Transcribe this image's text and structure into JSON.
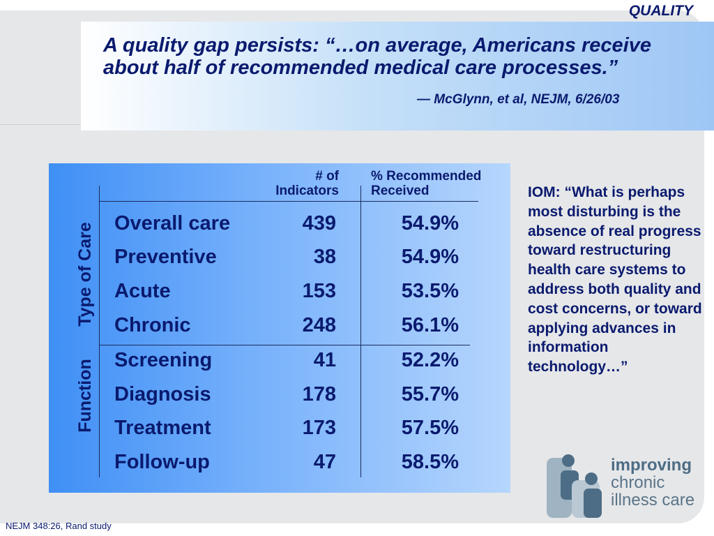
{
  "header": {
    "section_tag": "QUALITY"
  },
  "quote": {
    "text": "A quality gap persists:  “…on average, Americans receive about half of recommended medical care processes.”",
    "citation": "— McGlynn, et al, NEJM, 6/26/03"
  },
  "table": {
    "col_indicators": "# of Indicators",
    "col_indicators_l1": "# of",
    "col_indicators_l2": "Indicators",
    "col_pct_l1": "% Recommended",
    "col_pct_l2": "Received",
    "group_type": "Type of Care",
    "group_function": "Function",
    "rows": [
      {
        "name": "Overall care",
        "count": "439",
        "pct": "54.9%"
      },
      {
        "name": "Preventive",
        "count": "38",
        "pct": "54.9%"
      },
      {
        "name": "Acute",
        "count": "153",
        "pct": "53.5%"
      },
      {
        "name": "Chronic",
        "count": "248",
        "pct": "56.1%"
      },
      {
        "name": "Screening",
        "count": "41",
        "pct": "52.2%"
      },
      {
        "name": "Diagnosis",
        "count": "178",
        "pct": "55.7%"
      },
      {
        "name": "Treatment",
        "count": "173",
        "pct": "57.5%"
      },
      {
        "name": "Follow-up",
        "count": "47",
        "pct": "58.5%"
      }
    ]
  },
  "iom_quote": "IOM: “What is perhaps most disturbing is the absence of real progress toward restructuring health care systems to address both quality and cost concerns, or toward applying advances in information technology…”",
  "footnote": "NEJM 348:26, Rand study",
  "logo": {
    "line1": "improving",
    "line2": "chronic",
    "line3": "illness care"
  },
  "colors": {
    "text": "#0a1a6e",
    "panel": "#e6e7e9",
    "logo": "#5a7488"
  }
}
